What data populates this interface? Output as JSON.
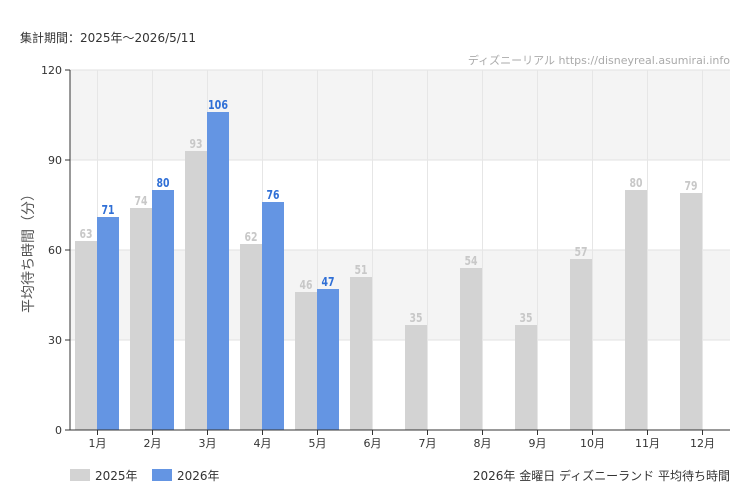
{
  "header": {
    "period_text": "集計期間：2025年～2026/5/11",
    "credit_text": "ディズニーリアル https://disneyreal.asumirai.info"
  },
  "footer": {
    "caption": "2026年 金曜日 ディズニーランド 平均待ち時間"
  },
  "chart_data": {
    "type": "bar",
    "ylabel": "平均待ち時間（分）",
    "xlabel": "",
    "ylim": [
      0,
      120
    ],
    "yticks": [
      0,
      30,
      60,
      90,
      120
    ],
    "grid": true,
    "legend_position": "bottom-left",
    "categories": [
      "1月",
      "2月",
      "3月",
      "4月",
      "5月",
      "6月",
      "7月",
      "8月",
      "9月",
      "10月",
      "11月",
      "12月"
    ],
    "series": [
      {
        "name": "2025年",
        "color": "#d3d3d3",
        "label_color": "#c8c8c8",
        "values": [
          63,
          74,
          93,
          62,
          46,
          51,
          35,
          54,
          35,
          57,
          80,
          79
        ]
      },
      {
        "name": "2026年",
        "color": "#6495e3",
        "label_color": "#2f6fd6",
        "values": [
          71,
          80,
          106,
          76,
          47,
          null,
          null,
          null,
          null,
          null,
          null,
          null
        ]
      }
    ]
  }
}
